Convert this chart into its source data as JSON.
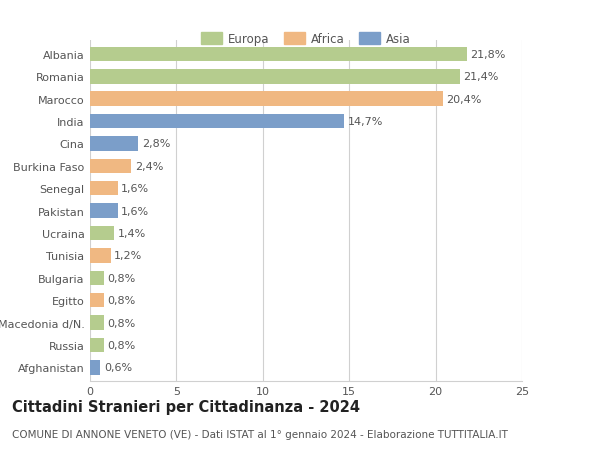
{
  "categories": [
    "Albania",
    "Romania",
    "Marocco",
    "India",
    "Cina",
    "Burkina Faso",
    "Senegal",
    "Pakistan",
    "Ucraina",
    "Tunisia",
    "Bulgaria",
    "Egitto",
    "Macedonia d/N.",
    "Russia",
    "Afghanistan"
  ],
  "values": [
    21.8,
    21.4,
    20.4,
    14.7,
    2.8,
    2.4,
    1.6,
    1.6,
    1.4,
    1.2,
    0.8,
    0.8,
    0.8,
    0.8,
    0.6
  ],
  "labels": [
    "21,8%",
    "21,4%",
    "20,4%",
    "14,7%",
    "2,8%",
    "2,4%",
    "1,6%",
    "1,6%",
    "1,4%",
    "1,2%",
    "0,8%",
    "0,8%",
    "0,8%",
    "0,8%",
    "0,6%"
  ],
  "continents": [
    "Europa",
    "Europa",
    "Africa",
    "Asia",
    "Asia",
    "Africa",
    "Africa",
    "Asia",
    "Europa",
    "Africa",
    "Europa",
    "Africa",
    "Europa",
    "Europa",
    "Asia"
  ],
  "colors": {
    "Europa": "#b5cc8e",
    "Africa": "#f0b882",
    "Asia": "#7b9ec9"
  },
  "legend_labels": [
    "Europa",
    "Africa",
    "Asia"
  ],
  "xlim": [
    0,
    25
  ],
  "xticks": [
    0,
    5,
    10,
    15,
    20,
    25
  ],
  "title": "Cittadini Stranieri per Cittadinanza - 2024",
  "subtitle": "COMUNE DI ANNONE VENETO (VE) - Dati ISTAT al 1° gennaio 2024 - Elaborazione TUTTITALIA.IT",
  "bg_color": "#ffffff",
  "grid_color": "#d0d0d0",
  "bar_height": 0.65,
  "label_fontsize": 8,
  "tick_fontsize": 8,
  "title_fontsize": 10.5,
  "subtitle_fontsize": 7.5
}
